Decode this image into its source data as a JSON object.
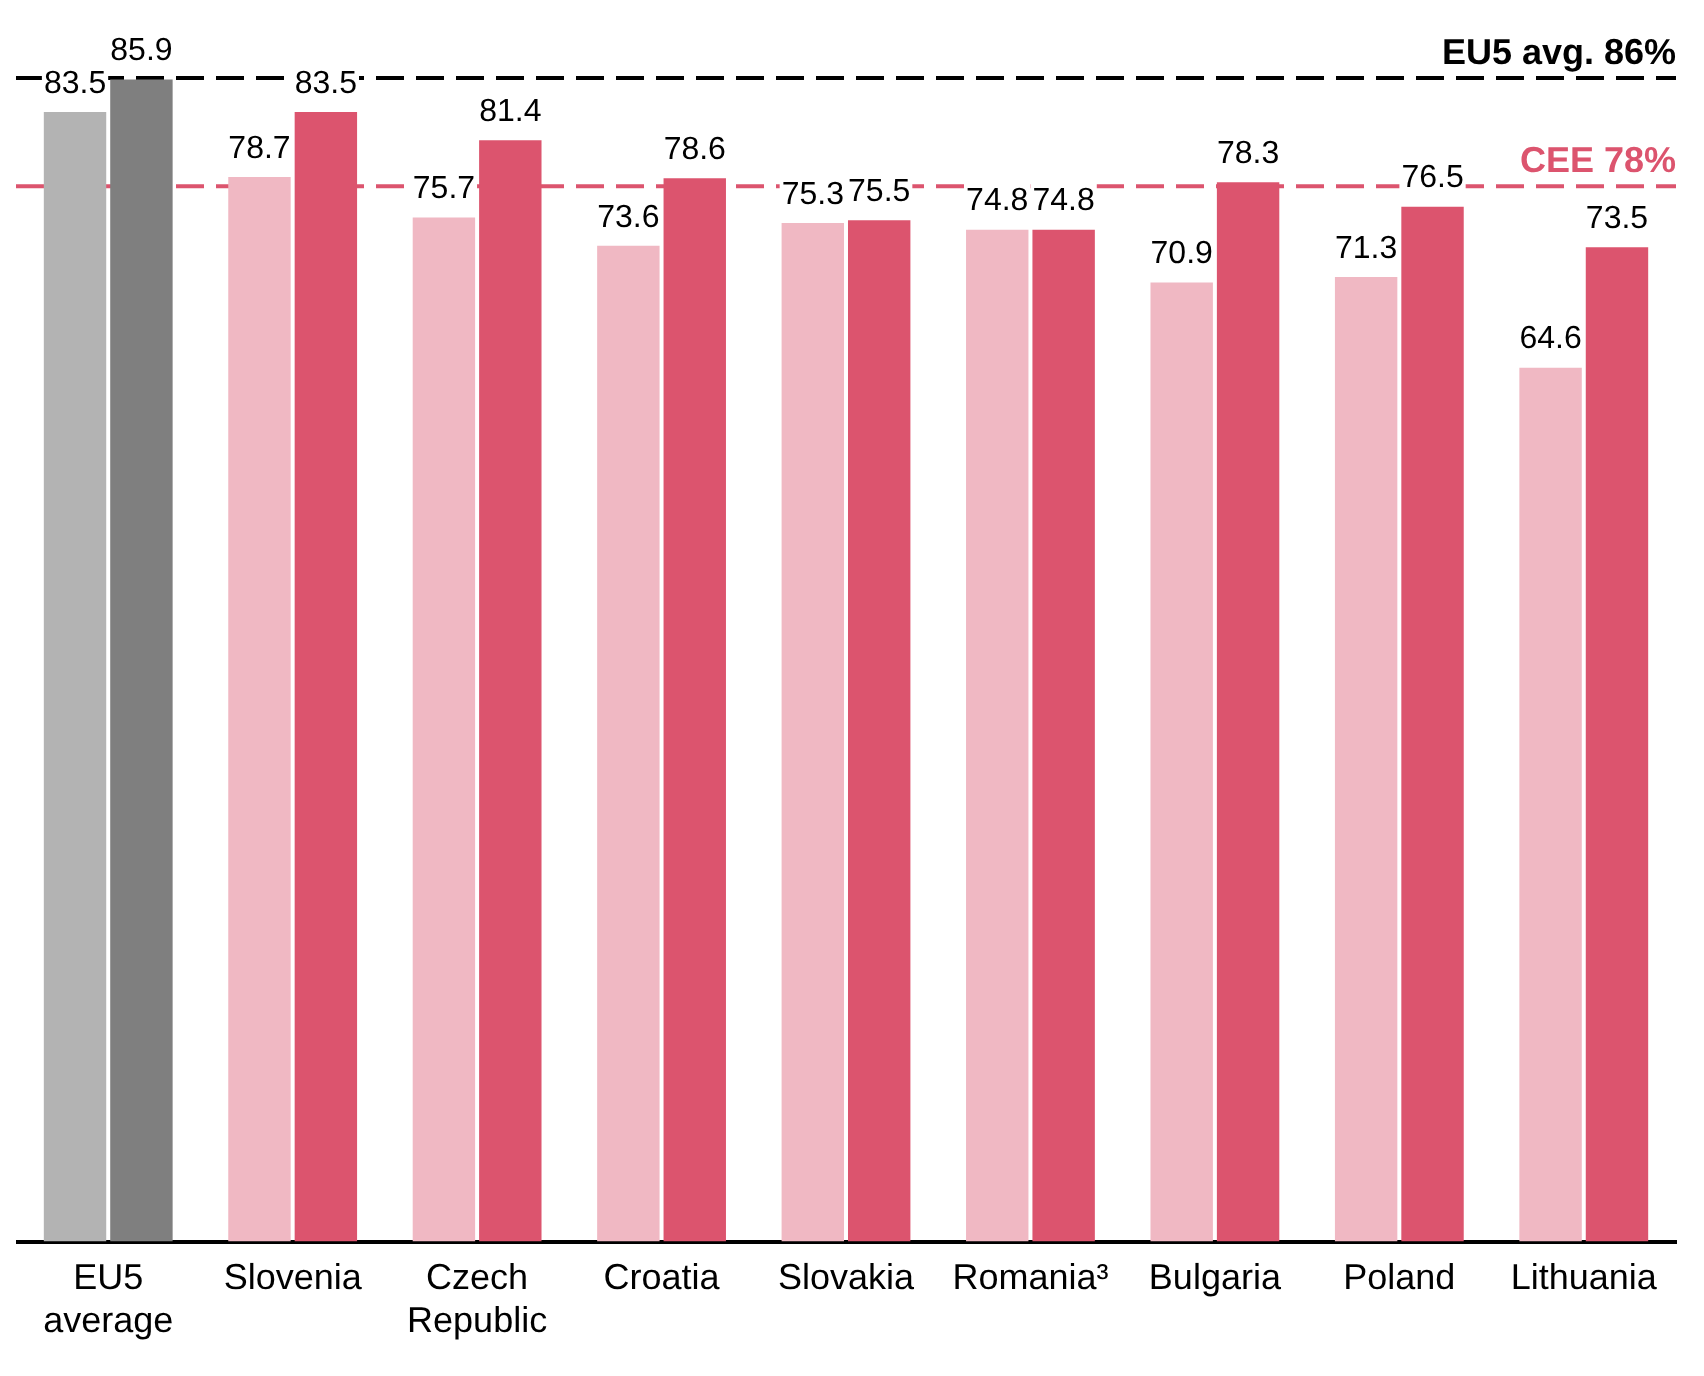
{
  "chart_data": {
    "type": "bar",
    "categories": [
      "EU5 average",
      "Slovenia",
      "Czech Republic",
      "Croatia",
      "Slovakia",
      "Romania³",
      "Bulgaria",
      "Poland",
      "Lithuania"
    ],
    "series": [
      {
        "colors": [
          "#b3b3b3",
          "#f0b8c3",
          "#f0b8c3",
          "#f0b8c3",
          "#f0b8c3",
          "#f0b8c3",
          "#f0b8c3",
          "#f0b8c3",
          "#f0b8c3"
        ],
        "values": [
          83.5,
          78.7,
          75.7,
          73.6,
          75.3,
          74.8,
          70.9,
          71.3,
          64.6
        ]
      },
      {
        "colors": [
          "#7f7f7f",
          "#dc546e",
          "#dc546e",
          "#dc546e",
          "#dc546e",
          "#dc546e",
          "#dc546e",
          "#dc546e",
          "#dc546e"
        ],
        "values": [
          85.9,
          83.5,
          81.4,
          78.6,
          75.5,
          74.8,
          78.3,
          76.5,
          73.5
        ]
      }
    ],
    "data_labels": true,
    "grid": false,
    "legend": false,
    "ref_lines": [
      {
        "axis": "y",
        "value": 86,
        "label": "EU5 avg. 86%",
        "color": "#000000",
        "line_style": "dashed"
      },
      {
        "axis": "y",
        "value": 78,
        "label": "CEE 78%",
        "color": "#dc546e",
        "line_style": "dashed"
      }
    ]
  }
}
